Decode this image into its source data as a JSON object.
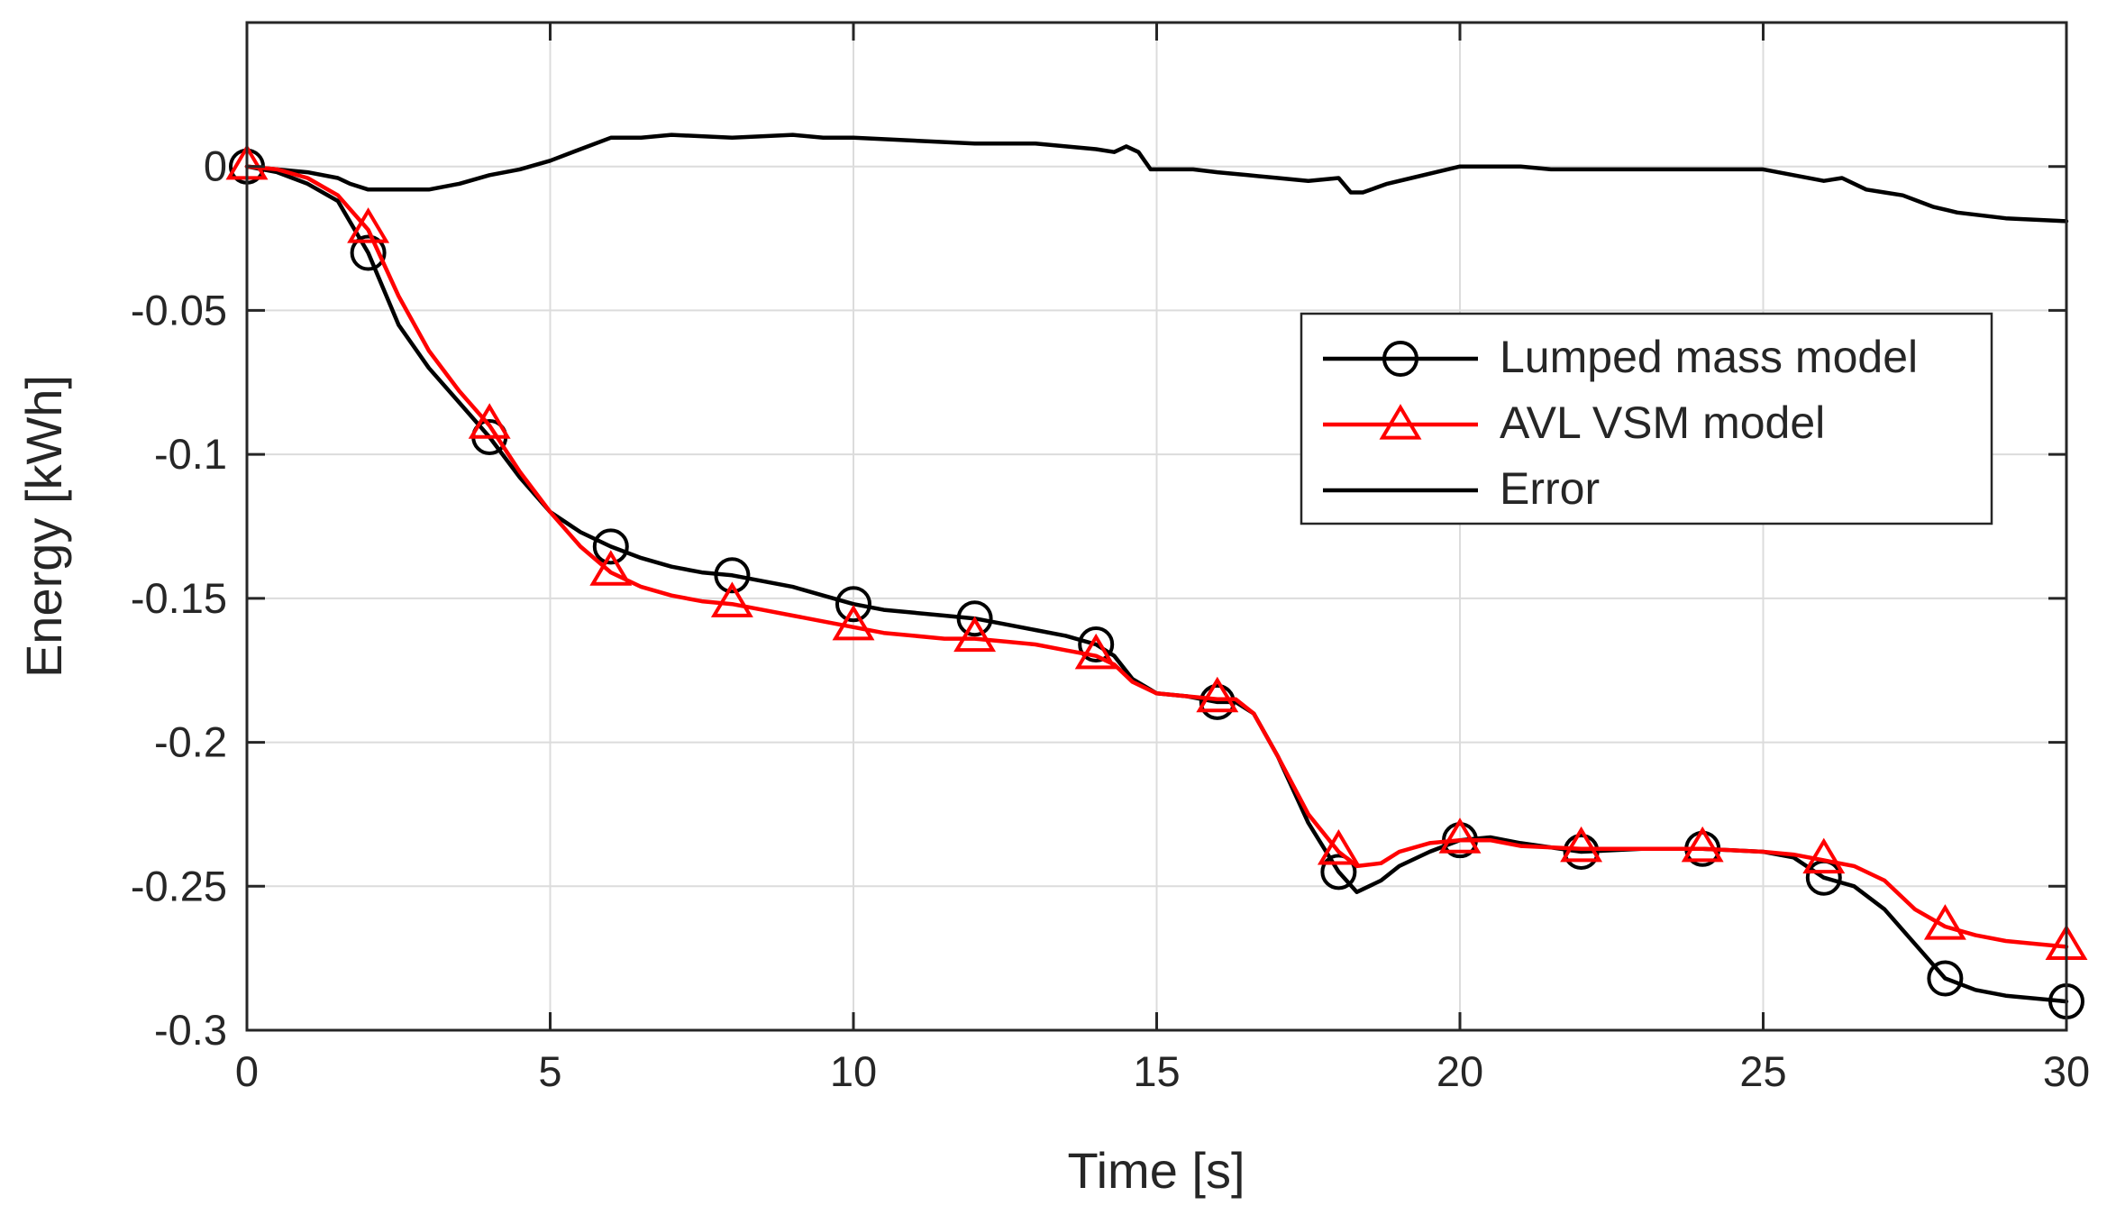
{
  "chart_data": {
    "type": "line",
    "title": "",
    "xlabel": "Time [s]",
    "ylabel": "Energy [kWh]",
    "xlim": [
      0,
      30
    ],
    "ylim": [
      -0.3,
      0.05
    ],
    "grid": true,
    "xticks": [
      0,
      5,
      10,
      15,
      20,
      25,
      30
    ],
    "xtick_labels": [
      "0",
      "5",
      "10",
      "15",
      "20",
      "25",
      "30"
    ],
    "yticks": [
      0,
      -0.05,
      -0.1,
      -0.15,
      -0.2,
      -0.25,
      -0.3
    ],
    "ytick_labels": [
      "0",
      "-0.05",
      "-0.1",
      "-0.15",
      "-0.2",
      "-0.25",
      "-0.3"
    ],
    "legend_position": "center-right",
    "series": [
      {
        "name": "Lumped mass model",
        "color": "#000000",
        "marker": "circle",
        "x": [
          0,
          0.5,
          1,
          1.5,
          2,
          2.5,
          3,
          3.5,
          4,
          4.5,
          5,
          5.5,
          6,
          6.5,
          7,
          7.5,
          8,
          8.5,
          9,
          9.5,
          10,
          10.5,
          11,
          11.5,
          12,
          12.5,
          13,
          13.5,
          14,
          14.3,
          14.6,
          15,
          15.5,
          16,
          16.3,
          16.6,
          17,
          17.5,
          18,
          18.3,
          18.7,
          19,
          19.5,
          20,
          20.5,
          21,
          22,
          23,
          24,
          25,
          25.5,
          26,
          26.5,
          27,
          27.5,
          28,
          28.5,
          29,
          29.5,
          30
        ],
        "y": [
          0,
          -0.002,
          -0.006,
          -0.012,
          -0.03,
          -0.055,
          -0.07,
          -0.082,
          -0.094,
          -0.108,
          -0.12,
          -0.127,
          -0.132,
          -0.136,
          -0.139,
          -0.141,
          -0.142,
          -0.144,
          -0.146,
          -0.149,
          -0.152,
          -0.154,
          -0.155,
          -0.156,
          -0.157,
          -0.159,
          -0.161,
          -0.163,
          -0.166,
          -0.17,
          -0.178,
          -0.183,
          -0.184,
          -0.186,
          -0.186,
          -0.19,
          -0.205,
          -0.228,
          -0.245,
          -0.252,
          -0.248,
          -0.243,
          -0.238,
          -0.234,
          -0.233,
          -0.235,
          -0.238,
          -0.237,
          -0.237,
          -0.238,
          -0.24,
          -0.247,
          -0.25,
          -0.258,
          -0.27,
          -0.282,
          -0.286,
          -0.288,
          -0.289,
          -0.29
        ],
        "marker_x": [
          0,
          2,
          4,
          6,
          8,
          10,
          12,
          14,
          16,
          18,
          20,
          22,
          24,
          26,
          28,
          30
        ],
        "marker_y": [
          0,
          -0.03,
          -0.094,
          -0.132,
          -0.142,
          -0.152,
          -0.157,
          -0.166,
          -0.186,
          -0.245,
          -0.234,
          -0.238,
          -0.237,
          -0.247,
          -0.282,
          -0.29
        ]
      },
      {
        "name": "AVL VSM model",
        "color": "#ff0000",
        "marker": "triangle",
        "x": [
          0,
          0.5,
          1,
          1.5,
          2,
          2.5,
          3,
          3.5,
          4,
          4.5,
          5,
          5.5,
          6,
          6.5,
          7,
          7.5,
          8,
          8.5,
          9,
          9.5,
          10,
          10.5,
          11,
          11.5,
          12,
          12.5,
          13,
          13.5,
          14,
          14.3,
          14.6,
          15,
          15.5,
          16,
          16.3,
          16.6,
          17,
          17.5,
          18,
          18.3,
          18.7,
          19,
          19.5,
          20,
          20.5,
          21,
          22,
          23,
          24,
          25,
          25.5,
          26,
          26.5,
          27,
          27.5,
          28,
          28.5,
          29,
          29.5,
          30
        ],
        "y": [
          0,
          -0.001,
          -0.004,
          -0.01,
          -0.022,
          -0.045,
          -0.064,
          -0.078,
          -0.09,
          -0.106,
          -0.12,
          -0.132,
          -0.141,
          -0.146,
          -0.149,
          -0.151,
          -0.152,
          -0.154,
          -0.156,
          -0.158,
          -0.16,
          -0.162,
          -0.163,
          -0.164,
          -0.164,
          -0.165,
          -0.166,
          -0.168,
          -0.17,
          -0.173,
          -0.179,
          -0.183,
          -0.184,
          -0.185,
          -0.185,
          -0.19,
          -0.205,
          -0.225,
          -0.238,
          -0.243,
          -0.242,
          -0.238,
          -0.235,
          -0.234,
          -0.234,
          -0.236,
          -0.237,
          -0.237,
          -0.237,
          -0.238,
          -0.239,
          -0.241,
          -0.243,
          -0.248,
          -0.258,
          -0.264,
          -0.267,
          -0.269,
          -0.27,
          -0.271
        ],
        "marker_x": [
          0,
          2,
          4,
          6,
          8,
          10,
          12,
          14,
          16,
          18,
          20,
          22,
          24,
          26,
          28,
          30
        ],
        "marker_y": [
          0,
          -0.022,
          -0.09,
          -0.141,
          -0.152,
          -0.16,
          -0.164,
          -0.17,
          -0.185,
          -0.238,
          -0.234,
          -0.237,
          -0.237,
          -0.241,
          -0.264,
          -0.271
        ]
      },
      {
        "name": "Error",
        "color": "#000000",
        "marker": "none",
        "x": [
          0,
          1,
          1.5,
          1.7,
          2,
          2.5,
          3,
          3.5,
          4,
          4.5,
          5,
          5.5,
          6,
          6.5,
          7,
          8,
          9,
          9.5,
          10,
          11,
          12,
          13,
          14,
          14.3,
          14.5,
          14.7,
          14.9,
          15.2,
          15.6,
          16,
          16.5,
          17,
          17.5,
          18,
          18.2,
          18.4,
          18.8,
          19.2,
          19.6,
          20,
          20.5,
          21,
          21.5,
          22,
          23,
          24,
          25,
          25.5,
          26,
          26.3,
          26.7,
          27,
          27.3,
          27.8,
          28.2,
          29,
          30
        ],
        "y": [
          0,
          -0.002,
          -0.004,
          -0.006,
          -0.008,
          -0.008,
          -0.008,
          -0.006,
          -0.003,
          -0.001,
          0.002,
          0.006,
          0.01,
          0.01,
          0.011,
          0.01,
          0.011,
          0.01,
          0.01,
          0.009,
          0.008,
          0.008,
          0.006,
          0.005,
          0.007,
          0.005,
          -0.001,
          -0.001,
          -0.001,
          -0.002,
          -0.003,
          -0.004,
          -0.005,
          -0.004,
          -0.009,
          -0.009,
          -0.006,
          -0.004,
          -0.002,
          0,
          0,
          0,
          -0.001,
          -0.001,
          -0.001,
          -0.001,
          -0.001,
          -0.003,
          -0.005,
          -0.004,
          -0.008,
          -0.009,
          -0.01,
          -0.014,
          -0.016,
          -0.018,
          -0.019
        ]
      }
    ]
  }
}
